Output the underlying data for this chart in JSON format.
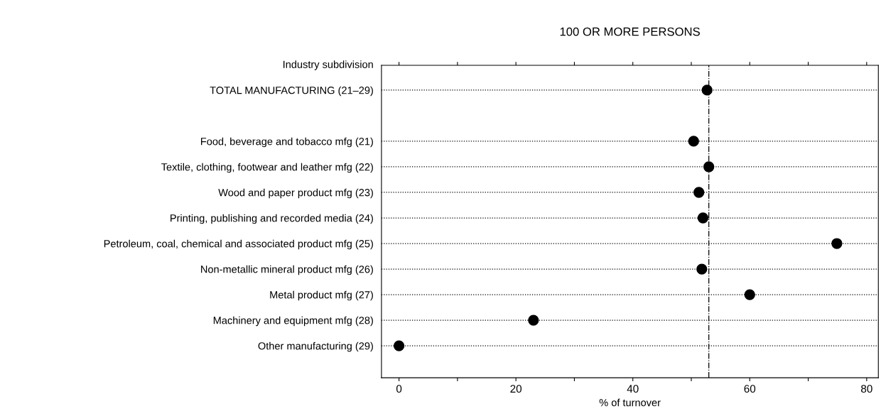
{
  "chart_data": {
    "type": "scatter",
    "title": "100 OR MORE PERSONS",
    "xlabel": "% of turnover",
    "ylabel": "Industry subdivision",
    "categories": [
      "TOTAL MANUFACTURING (21–29)",
      null,
      "Food, beverage and tobacco mfg (21)",
      "Textile, clothing, footwear and leather mfg (22)",
      "Wood and paper product mfg (23)",
      "Printing, publishing and recorded media (24)",
      "Petroleum, coal, chemical and associated product mfg (25)",
      "Non-metallic mineral product mfg (26)",
      "Metal product mfg (27)",
      "Machinery and equipment mfg (28)",
      "Other manufacturing (29)"
    ],
    "orientation": "horizontal",
    "series": [
      {
        "color": "#000000",
        "values": [
          52.7,
          null,
          50.4,
          53.0,
          51.3,
          52.0,
          74.9,
          51.8,
          60.0,
          23.0,
          0
        ]
      }
    ],
    "xlim": [
      -3,
      82
    ],
    "xticks": [
      0,
      {
        "value": 10,
        "label": null
      },
      20,
      {
        "value": 30,
        "label": null
      },
      40,
      {
        "value": 50,
        "label": null
      },
      60,
      {
        "value": 70,
        "label": null
      },
      80
    ],
    "ref_lines": [
      {
        "axis": "x",
        "value": 53,
        "color": "#000000",
        "line_style": "dashdot"
      }
    ],
    "marker": "circle",
    "grid": "y",
    "legend": false
  }
}
